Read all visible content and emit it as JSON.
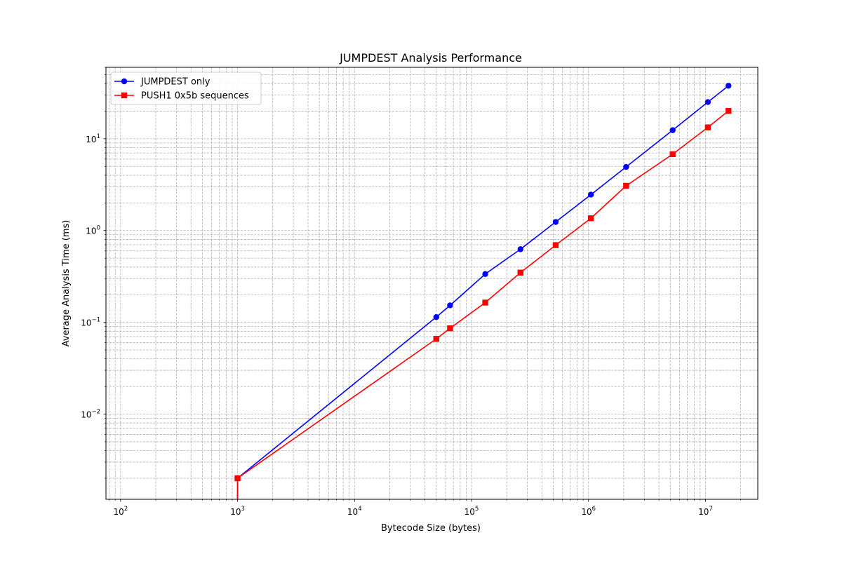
{
  "chart_data": {
    "type": "line",
    "title": "JUMPDEST Analysis Performance",
    "xlabel": "Bytecode Size (bytes)",
    "ylabel": "Average Analysis Time (ms)",
    "xscale": "log",
    "yscale": "log",
    "xlim": [
      75,
      28000000
    ],
    "ylim": [
      0.00118,
      60
    ],
    "x_ticks": [
      {
        "value": 100,
        "base": "10",
        "exp": "2"
      },
      {
        "value": 1000,
        "base": "10",
        "exp": "3"
      },
      {
        "value": 10000,
        "base": "10",
        "exp": "4"
      },
      {
        "value": 100000,
        "base": "10",
        "exp": "5"
      },
      {
        "value": 1000000,
        "base": "10",
        "exp": "6"
      },
      {
        "value": 10000000,
        "base": "10",
        "exp": "7"
      }
    ],
    "y_ticks": [
      {
        "value": 0.01,
        "base": "10",
        "exp": "−2"
      },
      {
        "value": 0.1,
        "base": "10",
        "exp": "−1"
      },
      {
        "value": 1,
        "base": "10",
        "exp": "0"
      },
      {
        "value": 10,
        "base": "10",
        "exp": "1"
      }
    ],
    "grid": true,
    "grid_which": "both",
    "legend_position": "upper-left",
    "series": [
      {
        "name": "JUMPDEST only",
        "color": "#0000ff",
        "marker": "circle",
        "x": [
          1000,
          1000,
          50000,
          65536,
          131072,
          262144,
          524288,
          1048576,
          2097152,
          5242880,
          10485760,
          15728640
        ],
        "y": [
          0.0005,
          0.002,
          0.114,
          0.153,
          0.336,
          0.626,
          1.24,
          2.46,
          4.93,
          12.4,
          25.1,
          37.8
        ]
      },
      {
        "name": "PUSH1 0x5b sequences",
        "color": "#ff0000",
        "marker": "square",
        "x": [
          1000,
          1000,
          50000,
          65536,
          131072,
          262144,
          524288,
          1048576,
          2097152,
          5242880,
          10485760,
          15728640
        ],
        "y": [
          0.0005,
          0.002,
          0.066,
          0.086,
          0.164,
          0.348,
          0.693,
          1.36,
          3.07,
          6.79,
          13.3,
          20.1
        ]
      }
    ]
  }
}
